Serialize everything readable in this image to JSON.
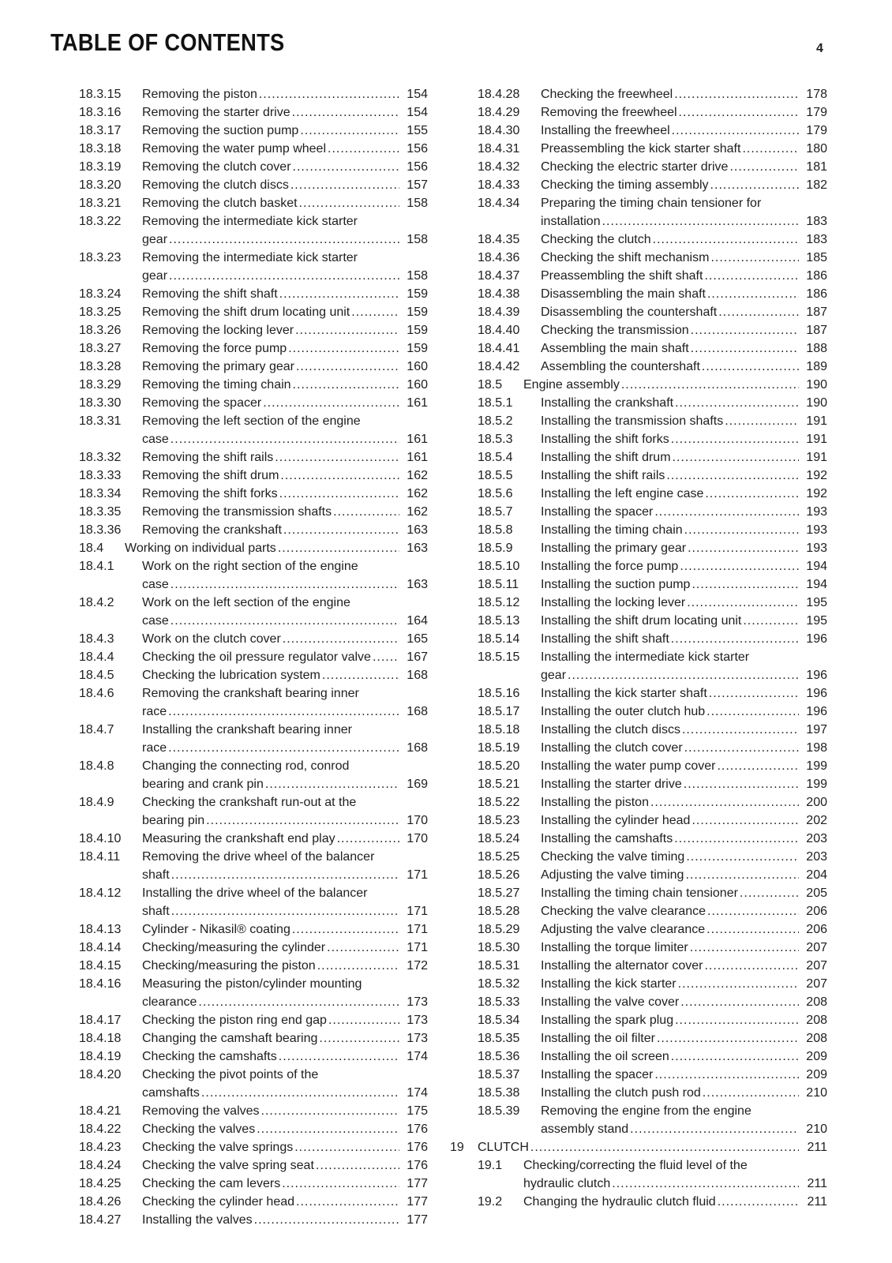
{
  "header": {
    "title": "TABLE OF CONTENTS",
    "page_number": "4"
  },
  "left_column": [
    {
      "num": "18.3.15",
      "level": "sub",
      "lines": [
        "Removing the piston"
      ],
      "page": "154"
    },
    {
      "num": "18.3.16",
      "level": "sub",
      "lines": [
        "Removing the starter drive"
      ],
      "page": "154"
    },
    {
      "num": "18.3.17",
      "level": "sub",
      "lines": [
        "Removing the suction pump"
      ],
      "page": "155"
    },
    {
      "num": "18.3.18",
      "level": "sub",
      "lines": [
        "Removing the water pump wheel"
      ],
      "page": "156"
    },
    {
      "num": "18.3.19",
      "level": "sub",
      "lines": [
        "Removing the clutch cover"
      ],
      "page": "156"
    },
    {
      "num": "18.3.20",
      "level": "sub",
      "lines": [
        "Removing the clutch discs"
      ],
      "page": "157"
    },
    {
      "num": "18.3.21",
      "level": "sub",
      "lines": [
        "Removing the clutch basket"
      ],
      "page": "158"
    },
    {
      "num": "18.3.22",
      "level": "sub",
      "lines": [
        "Removing the intermediate kick starter",
        "gear"
      ],
      "page": "158"
    },
    {
      "num": "18.3.23",
      "level": "sub",
      "lines": [
        "Removing the intermediate kick starter",
        "gear"
      ],
      "page": "158"
    },
    {
      "num": "18.3.24",
      "level": "sub",
      "lines": [
        "Removing the shift shaft"
      ],
      "page": "159"
    },
    {
      "num": "18.3.25",
      "level": "sub",
      "lines": [
        "Removing the shift drum locating unit"
      ],
      "page": "159"
    },
    {
      "num": "18.3.26",
      "level": "sub",
      "lines": [
        "Removing the locking lever"
      ],
      "page": "159"
    },
    {
      "num": "18.3.27",
      "level": "sub",
      "lines": [
        "Removing the force pump"
      ],
      "page": "159"
    },
    {
      "num": "18.3.28",
      "level": "sub",
      "lines": [
        "Removing the primary gear"
      ],
      "page": "160"
    },
    {
      "num": "18.3.29",
      "level": "sub",
      "lines": [
        "Removing the timing chain"
      ],
      "page": "160"
    },
    {
      "num": "18.3.30",
      "level": "sub",
      "lines": [
        "Removing the spacer"
      ],
      "page": "161"
    },
    {
      "num": "18.3.31",
      "level": "sub",
      "lines": [
        "Removing the left section of the engine",
        "case"
      ],
      "page": "161"
    },
    {
      "num": "18.3.32",
      "level": "sub",
      "lines": [
        "Removing the shift rails"
      ],
      "page": "161"
    },
    {
      "num": "18.3.33",
      "level": "sub",
      "lines": [
        "Removing the shift drum"
      ],
      "page": "162"
    },
    {
      "num": "18.3.34",
      "level": "sub",
      "lines": [
        "Removing the shift forks"
      ],
      "page": "162"
    },
    {
      "num": "18.3.35",
      "level": "sub",
      "lines": [
        "Removing the transmission shafts"
      ],
      "page": "162"
    },
    {
      "num": "18.3.36",
      "level": "sub",
      "lines": [
        "Removing the crankshaft"
      ],
      "page": "163"
    },
    {
      "num": "18.4",
      "level": "sec",
      "lines": [
        "Working on individual parts"
      ],
      "page": "163"
    },
    {
      "num": "18.4.1",
      "level": "sub",
      "lines": [
        "Work on the right section of the engine",
        "case"
      ],
      "page": "163"
    },
    {
      "num": "18.4.2",
      "level": "sub",
      "lines": [
        "Work on the left section of the engine",
        "case"
      ],
      "page": "164"
    },
    {
      "num": "18.4.3",
      "level": "sub",
      "lines": [
        "Work on the clutch cover"
      ],
      "page": "165"
    },
    {
      "num": "18.4.4",
      "level": "sub",
      "lines": [
        "Checking the oil pressure regulator valve"
      ],
      "page": "167"
    },
    {
      "num": "18.4.5",
      "level": "sub",
      "lines": [
        "Checking the lubrication system"
      ],
      "page": "168"
    },
    {
      "num": "18.4.6",
      "level": "sub",
      "lines": [
        "Removing the crankshaft bearing inner",
        "race"
      ],
      "page": "168"
    },
    {
      "num": "18.4.7",
      "level": "sub",
      "lines": [
        "Installing the crankshaft bearing inner",
        "race"
      ],
      "page": "168"
    },
    {
      "num": "18.4.8",
      "level": "sub",
      "lines": [
        "Changing the connecting rod, conrod",
        "bearing and crank pin"
      ],
      "page": "169"
    },
    {
      "num": "18.4.9",
      "level": "sub",
      "lines": [
        "Checking the crankshaft run-out at the",
        "bearing pin"
      ],
      "page": "170"
    },
    {
      "num": "18.4.10",
      "level": "sub",
      "lines": [
        "Measuring the crankshaft end play"
      ],
      "page": "170"
    },
    {
      "num": "18.4.11",
      "level": "sub",
      "lines": [
        "Removing the drive wheel of the balancer",
        "shaft"
      ],
      "page": "171"
    },
    {
      "num": "18.4.12",
      "level": "sub",
      "lines": [
        "Installing the drive wheel of the balancer",
        "shaft"
      ],
      "page": "171"
    },
    {
      "num": "18.4.13",
      "level": "sub",
      "lines": [
        "Cylinder - Nikasil® coating"
      ],
      "page": "171"
    },
    {
      "num": "18.4.14",
      "level": "sub",
      "lines": [
        "Checking/measuring the cylinder"
      ],
      "page": "171"
    },
    {
      "num": "18.4.15",
      "level": "sub",
      "lines": [
        "Checking/measuring the piston"
      ],
      "page": "172"
    },
    {
      "num": "18.4.16",
      "level": "sub",
      "lines": [
        "Measuring the piston/cylinder mounting",
        "clearance"
      ],
      "page": "173"
    },
    {
      "num": "18.4.17",
      "level": "sub",
      "lines": [
        "Checking the piston ring end gap"
      ],
      "page": "173"
    },
    {
      "num": "18.4.18",
      "level": "sub",
      "lines": [
        "Changing the camshaft bearing"
      ],
      "page": "173"
    },
    {
      "num": "18.4.19",
      "level": "sub",
      "lines": [
        "Checking the camshafts"
      ],
      "page": "174"
    },
    {
      "num": "18.4.20",
      "level": "sub",
      "lines": [
        "Checking the pivot points of the",
        "camshafts"
      ],
      "page": "174"
    },
    {
      "num": "18.4.21",
      "level": "sub",
      "lines": [
        "Removing the valves"
      ],
      "page": "175"
    },
    {
      "num": "18.4.22",
      "level": "sub",
      "lines": [
        "Checking the valves"
      ],
      "page": "176"
    },
    {
      "num": "18.4.23",
      "level": "sub",
      "lines": [
        "Checking the valve springs"
      ],
      "page": "176"
    },
    {
      "num": "18.4.24",
      "level": "sub",
      "lines": [
        "Checking the valve spring seat"
      ],
      "page": "176"
    },
    {
      "num": "18.4.25",
      "level": "sub",
      "lines": [
        "Checking the cam levers"
      ],
      "page": "177"
    },
    {
      "num": "18.4.26",
      "level": "sub",
      "lines": [
        "Checking the cylinder head"
      ],
      "page": "177"
    },
    {
      "num": "18.4.27",
      "level": "sub",
      "lines": [
        "Installing the valves"
      ],
      "page": "177"
    }
  ],
  "right_column": [
    {
      "num": "18.4.28",
      "level": "sub",
      "lines": [
        "Checking the freewheel"
      ],
      "page": "178"
    },
    {
      "num": "18.4.29",
      "level": "sub",
      "lines": [
        "Removing the freewheel"
      ],
      "page": "179"
    },
    {
      "num": "18.4.30",
      "level": "sub",
      "lines": [
        "Installing the freewheel"
      ],
      "page": "179"
    },
    {
      "num": "18.4.31",
      "level": "sub",
      "lines": [
        "Preassembling the kick starter shaft"
      ],
      "page": "180"
    },
    {
      "num": "18.4.32",
      "level": "sub",
      "lines": [
        "Checking the electric starter drive"
      ],
      "page": "181"
    },
    {
      "num": "18.4.33",
      "level": "sub",
      "lines": [
        "Checking the timing assembly"
      ],
      "page": "182"
    },
    {
      "num": "18.4.34",
      "level": "sub",
      "lines": [
        "Preparing the timing chain tensioner for",
        "installation"
      ],
      "page": "183"
    },
    {
      "num": "18.4.35",
      "level": "sub",
      "lines": [
        "Checking the clutch"
      ],
      "page": "183"
    },
    {
      "num": "18.4.36",
      "level": "sub",
      "lines": [
        "Checking the shift mechanism"
      ],
      "page": "185"
    },
    {
      "num": "18.4.37",
      "level": "sub",
      "lines": [
        "Preassembling the shift shaft"
      ],
      "page": "186"
    },
    {
      "num": "18.4.38",
      "level": "sub",
      "lines": [
        "Disassembling the main shaft"
      ],
      "page": "186"
    },
    {
      "num": "18.4.39",
      "level": "sub",
      "lines": [
        "Disassembling the countershaft"
      ],
      "page": "187"
    },
    {
      "num": "18.4.40",
      "level": "sub",
      "lines": [
        "Checking the transmission"
      ],
      "page": "187"
    },
    {
      "num": "18.4.41",
      "level": "sub",
      "lines": [
        "Assembling the main shaft"
      ],
      "page": "188"
    },
    {
      "num": "18.4.42",
      "level": "sub",
      "lines": [
        "Assembling the countershaft"
      ],
      "page": "189"
    },
    {
      "num": "18.5",
      "level": "sec",
      "lines": [
        "Engine assembly"
      ],
      "page": "190"
    },
    {
      "num": "18.5.1",
      "level": "sub",
      "lines": [
        "Installing the crankshaft"
      ],
      "page": "190"
    },
    {
      "num": "18.5.2",
      "level": "sub",
      "lines": [
        "Installing the transmission shafts"
      ],
      "page": "191"
    },
    {
      "num": "18.5.3",
      "level": "sub",
      "lines": [
        "Installing the shift forks"
      ],
      "page": "191"
    },
    {
      "num": "18.5.4",
      "level": "sub",
      "lines": [
        "Installing the shift drum"
      ],
      "page": "191"
    },
    {
      "num": "18.5.5",
      "level": "sub",
      "lines": [
        "Installing the shift rails"
      ],
      "page": "192"
    },
    {
      "num": "18.5.6",
      "level": "sub",
      "lines": [
        "Installing the left engine case"
      ],
      "page": "192"
    },
    {
      "num": "18.5.7",
      "level": "sub",
      "lines": [
        "Installing the spacer"
      ],
      "page": "193"
    },
    {
      "num": "18.5.8",
      "level": "sub",
      "lines": [
        "Installing the timing chain"
      ],
      "page": "193"
    },
    {
      "num": "18.5.9",
      "level": "sub",
      "lines": [
        "Installing the primary gear"
      ],
      "page": "193"
    },
    {
      "num": "18.5.10",
      "level": "sub",
      "lines": [
        "Installing the force pump"
      ],
      "page": "194"
    },
    {
      "num": "18.5.11",
      "level": "sub",
      "lines": [
        "Installing the suction pump"
      ],
      "page": "194"
    },
    {
      "num": "18.5.12",
      "level": "sub",
      "lines": [
        "Installing the locking lever"
      ],
      "page": "195"
    },
    {
      "num": "18.5.13",
      "level": "sub",
      "lines": [
        "Installing the shift drum locating unit"
      ],
      "page": "195"
    },
    {
      "num": "18.5.14",
      "level": "sub",
      "lines": [
        "Installing the shift shaft"
      ],
      "page": "196"
    },
    {
      "num": "18.5.15",
      "level": "sub",
      "lines": [
        "Installing the intermediate kick starter",
        "gear"
      ],
      "page": "196"
    },
    {
      "num": "18.5.16",
      "level": "sub",
      "lines": [
        "Installing the kick starter shaft"
      ],
      "page": "196"
    },
    {
      "num": "18.5.17",
      "level": "sub",
      "lines": [
        "Installing the outer clutch hub"
      ],
      "page": "196"
    },
    {
      "num": "18.5.18",
      "level": "sub",
      "lines": [
        "Installing the clutch discs"
      ],
      "page": "197"
    },
    {
      "num": "18.5.19",
      "level": "sub",
      "lines": [
        "Installing the clutch cover"
      ],
      "page": "198"
    },
    {
      "num": "18.5.20",
      "level": "sub",
      "lines": [
        "Installing the water pump cover"
      ],
      "page": "199"
    },
    {
      "num": "18.5.21",
      "level": "sub",
      "lines": [
        "Installing the starter drive"
      ],
      "page": "199"
    },
    {
      "num": "18.5.22",
      "level": "sub",
      "lines": [
        "Installing the piston"
      ],
      "page": "200"
    },
    {
      "num": "18.5.23",
      "level": "sub",
      "lines": [
        "Installing the cylinder head"
      ],
      "page": "202"
    },
    {
      "num": "18.5.24",
      "level": "sub",
      "lines": [
        "Installing the camshafts"
      ],
      "page": "203"
    },
    {
      "num": "18.5.25",
      "level": "sub",
      "lines": [
        "Checking the valve timing"
      ],
      "page": "203"
    },
    {
      "num": "18.5.26",
      "level": "sub",
      "lines": [
        "Adjusting the valve timing"
      ],
      "page": "204"
    },
    {
      "num": "18.5.27",
      "level": "sub",
      "lines": [
        "Installing the timing chain tensioner"
      ],
      "page": "205"
    },
    {
      "num": "18.5.28",
      "level": "sub",
      "lines": [
        "Checking the valve clearance"
      ],
      "page": "206"
    },
    {
      "num": "18.5.29",
      "level": "sub",
      "lines": [
        "Adjusting the valve clearance"
      ],
      "page": "206"
    },
    {
      "num": "18.5.30",
      "level": "sub",
      "lines": [
        "Installing the torque limiter"
      ],
      "page": "207"
    },
    {
      "num": "18.5.31",
      "level": "sub",
      "lines": [
        "Installing the alternator cover"
      ],
      "page": "207"
    },
    {
      "num": "18.5.32",
      "level": "sub",
      "lines": [
        "Installing the kick starter"
      ],
      "page": "207"
    },
    {
      "num": "18.5.33",
      "level": "sub",
      "lines": [
        "Installing the valve cover"
      ],
      "page": "208"
    },
    {
      "num": "18.5.34",
      "level": "sub",
      "lines": [
        "Installing the spark plug"
      ],
      "page": "208"
    },
    {
      "num": "18.5.35",
      "level": "sub",
      "lines": [
        "Installing the oil filter"
      ],
      "page": "208"
    },
    {
      "num": "18.5.36",
      "level": "sub",
      "lines": [
        "Installing the oil screen"
      ],
      "page": "209"
    },
    {
      "num": "18.5.37",
      "level": "sub",
      "lines": [
        "Installing the spacer"
      ],
      "page": "209"
    },
    {
      "num": "18.5.38",
      "level": "sub",
      "lines": [
        "Installing the clutch push rod"
      ],
      "page": "210"
    },
    {
      "num": "18.5.39",
      "level": "sub",
      "lines": [
        "Removing the engine from the engine",
        "assembly stand"
      ],
      "page": "210"
    },
    {
      "num": "19",
      "level": "ch",
      "lines": [
        "CLUTCH"
      ],
      "page": "211"
    },
    {
      "num": "19.1",
      "level": "sec",
      "lines": [
        "Checking/correcting the fluid level of the",
        "hydraulic clutch"
      ],
      "page": "211"
    },
    {
      "num": "19.2",
      "level": "sec",
      "lines": [
        "Changing the hydraulic clutch fluid"
      ],
      "page": "211"
    }
  ]
}
